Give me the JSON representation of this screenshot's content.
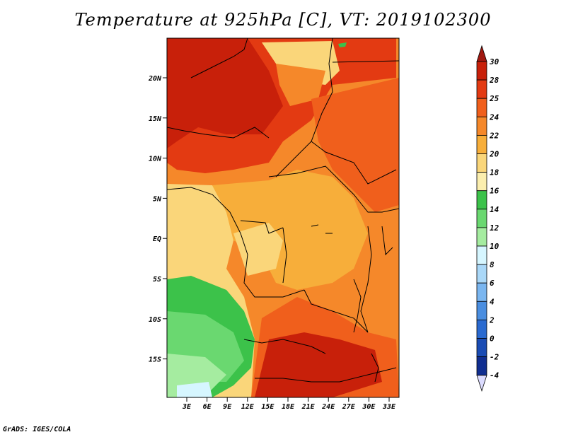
{
  "title": "Temperature at 925hPa [C], VT: 2019102300",
  "credit": "GrADS: IGES/COLA",
  "map": {
    "lat_labels": [
      "20N",
      "15N",
      "10N",
      "5N",
      "EQ",
      "5S",
      "10S",
      "15S"
    ],
    "lon_labels": [
      "3E",
      "6E",
      "9E",
      "12E",
      "15E",
      "18E",
      "21E",
      "24E",
      "27E",
      "30E",
      "33E"
    ],
    "colors": {
      "t30": "#c8200a",
      "t28": "#e33a12",
      "t25": "#f05f1c",
      "t24": "#f5882a",
      "t22": "#f7ae3a",
      "t20": "#fad67a",
      "t18": "#fbeeae",
      "t16": "#3cc24a",
      "t14": "#6ad870",
      "t12": "#a5eca0",
      "t10": "#d6f6ff"
    }
  },
  "colorbar": {
    "labels": [
      "30",
      "28",
      "25",
      "24",
      "22",
      "20",
      "18",
      "16",
      "14",
      "12",
      "10",
      "8",
      "6",
      "4",
      "2",
      "0",
      "-2",
      "-4"
    ],
    "colors": [
      "#c8200a",
      "#e33a12",
      "#f05f1c",
      "#f5882a",
      "#f7ae3a",
      "#fad67a",
      "#fbeeae",
      "#3cc24a",
      "#6ad870",
      "#a5eca0",
      "#d6f6ff",
      "#aad8f8",
      "#7ab6f0",
      "#4a8ee0",
      "#2a6ad0",
      "#1a4cb4",
      "#102e90",
      "#0a1266"
    ],
    "top_tip_color": "#a01810",
    "bottom_tip_color": "#dcdcff"
  }
}
